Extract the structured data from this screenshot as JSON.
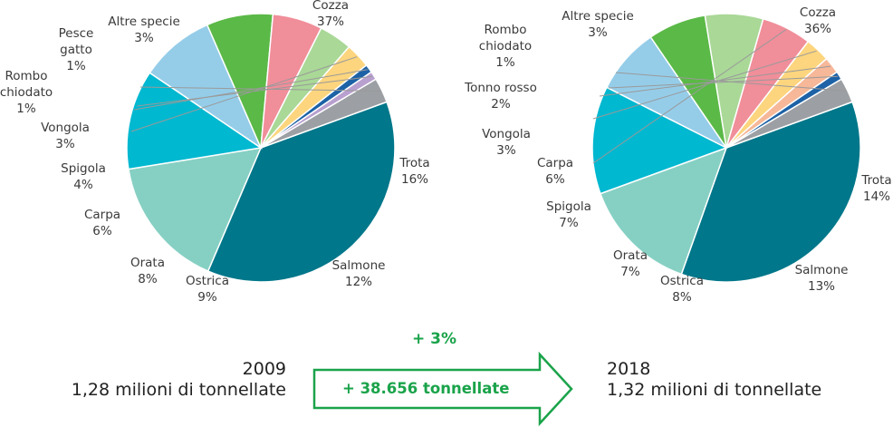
{
  "chart_data": [
    {
      "type": "pie",
      "slices": [
        {
          "label": "Cozza",
          "value": 37,
          "display": "37%",
          "color": "#00778a"
        },
        {
          "label": "Trota",
          "value": 16,
          "display": "16%",
          "color": "#86d0c3"
        },
        {
          "label": "Salmone",
          "value": 12,
          "display": "12%",
          "color": "#00b8d0"
        },
        {
          "label": "Ostrica",
          "value": 9,
          "display": "9%",
          "color": "#95cde9"
        },
        {
          "label": "Orata",
          "value": 8,
          "display": "8%",
          "color": "#5bb947"
        },
        {
          "label": "Carpa",
          "value": 6,
          "display": "6%",
          "color": "#f08e9a"
        },
        {
          "label": "Spigola",
          "value": 4,
          "display": "4%",
          "color": "#a9d897"
        },
        {
          "label": "Vongola",
          "value": 3,
          "display": "3%",
          "color": "#fcd57e"
        },
        {
          "label": "Rombo chiodato",
          "value": 1,
          "display": "1%",
          "color": "#1d62a6"
        },
        {
          "label": "Pesce gatto",
          "value": 1,
          "display": "1%",
          "color": "#b8a0cf"
        },
        {
          "label": "Altre specie",
          "value": 3,
          "display": "3%",
          "color": "#9c9fa3"
        }
      ]
    },
    {
      "type": "pie",
      "slices": [
        {
          "label": "Cozza",
          "value": 36,
          "display": "36%",
          "color": "#00778a"
        },
        {
          "label": "Trota",
          "value": 14,
          "display": "14%",
          "color": "#86d0c3"
        },
        {
          "label": "Salmone",
          "value": 13,
          "display": "13%",
          "color": "#00b8d0"
        },
        {
          "label": "Ostrica",
          "value": 8,
          "display": "8%",
          "color": "#95cde9"
        },
        {
          "label": "Orata",
          "value": 7,
          "display": "7%",
          "color": "#5bb947"
        },
        {
          "label": "Spigola",
          "value": 7,
          "display": "7%",
          "color": "#a9d897"
        },
        {
          "label": "Carpa",
          "value": 6,
          "display": "6%",
          "color": "#f08e9a"
        },
        {
          "label": "Vongola",
          "value": 3,
          "display": "3%",
          "color": "#fcd57e"
        },
        {
          "label": "Tonno rosso",
          "value": 2,
          "display": "2%",
          "color": "#f6b899"
        },
        {
          "label": "Rombo chiodato",
          "value": 1,
          "display": "1%",
          "color": "#1d62a6"
        },
        {
          "label": "Altre specie",
          "value": 3,
          "display": "3%",
          "color": "#9c9fa3"
        }
      ]
    }
  ],
  "summary": {
    "year_left": "2009",
    "amount_left": "1,28 milioni di tonnellate",
    "year_right": "2018",
    "amount_right": "1,32 milioni di tonnellate",
    "growth_percent": "+ 3%",
    "growth_tonnes": "+ 38.656 tonnellate",
    "accent_color": "#1aa34a"
  }
}
